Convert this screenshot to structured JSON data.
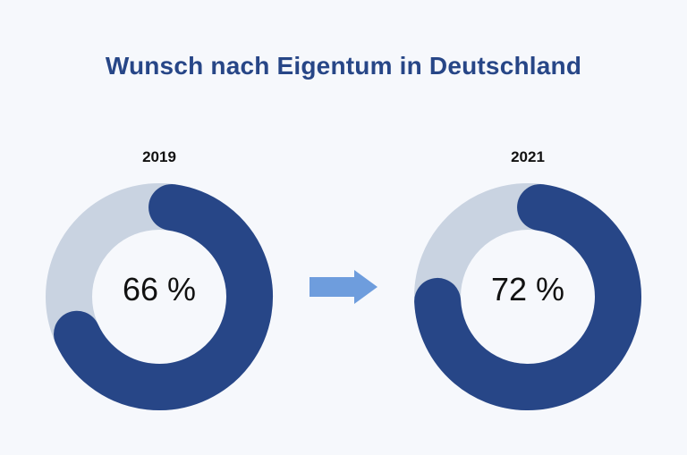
{
  "chart_data": {
    "type": "donut",
    "title": "Wunsch nach Eigentum in Deutschland",
    "series": [
      {
        "name": "2019",
        "value": 66,
        "label": "66 %"
      },
      {
        "name": "2021",
        "value": 72,
        "label": "72 %"
      }
    ],
    "colors": {
      "filled": "#274687",
      "remaining": "#c9d3e1",
      "arrow": "#6e9ddd",
      "title": "#274687"
    }
  }
}
